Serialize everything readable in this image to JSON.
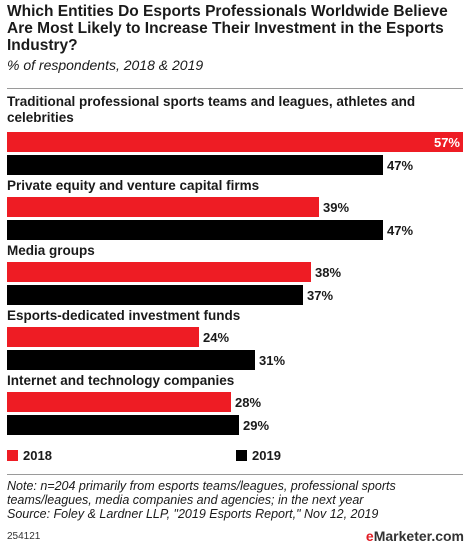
{
  "header": {
    "title": "Which Entities Do Esports Professionals Worldwide Believe Are Most Likely to Increase Their Investment in the Esports Industry?",
    "subtitle": "% of respondents, 2018 & 2019"
  },
  "colors": {
    "series_2018": "#ee1c24",
    "series_2019": "#000000",
    "text": "#1a1a1a"
  },
  "chart_data": {
    "type": "bar",
    "orientation": "horizontal",
    "categories": [
      "Traditional professional sports teams and leagues, athletes and celebrities",
      "Private equity and venture capital firms",
      "Media groups",
      "Esports-dedicated investment funds",
      "Internet and technology companies"
    ],
    "series": [
      {
        "name": "2018",
        "values": [
          57,
          39,
          38,
          24,
          28
        ]
      },
      {
        "name": "2019",
        "values": [
          47,
          47,
          37,
          31,
          29
        ]
      }
    ],
    "value_suffix": "%",
    "xlim": [
      0,
      57
    ],
    "grid": false,
    "legend_position": "bottom-left"
  },
  "footer": {
    "note": "Note: n=204 primarily from esports teams/leagues, professional sports teams/leagues, media companies and agencies; in the next year",
    "source": "Source: Foley & Lardner LLP, \"2019 Esports Report,\" Nov 12, 2019",
    "chart_id": "254121",
    "brand_prefix": "e",
    "brand_rest": "Marketer",
    "brand_suffix": ".com"
  }
}
